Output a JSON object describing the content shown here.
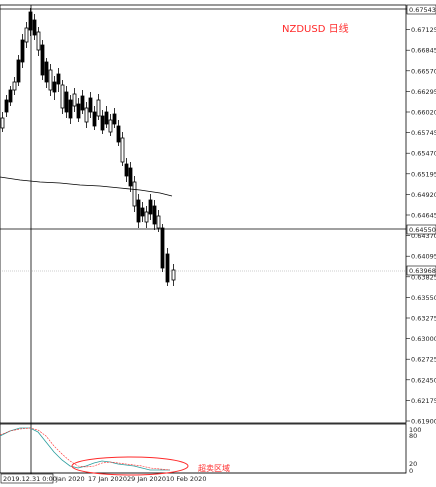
{
  "chart_data": {
    "type": "candlestick",
    "title": "NZDUSD 日线",
    "y_ticks": [
      "0.67543",
      "0.67125",
      "0.66845",
      "0.66570",
      "0.66295",
      "0.66020",
      "0.65745",
      "0.65470",
      "0.65195",
      "0.64920",
      "0.64645",
      "0.64370",
      "0.64095",
      "0.63825",
      "0.63550",
      "0.63275",
      "0.63000",
      "0.62725",
      "0.62450",
      "0.62175",
      "0.61900"
    ],
    "price_top_tag": "0.67543",
    "price_mid_tag": "0.64550",
    "price_current_tag": "0.63968",
    "x_labels": [
      "2019.12.31 0:00",
      "Jan 2020",
      "17 Jan 2020",
      "29 Jan 2020",
      "10 Feb 2020"
    ],
    "indicator_levels": [
      "100",
      "80",
      "20",
      "0"
    ],
    "annotation": "超卖区域",
    "colors": {
      "candles": "#000000",
      "moving_average": "#000000",
      "annotation": "#ff2a2a",
      "stoch_main": "#2a9d9d",
      "stoch_signal": "#ff2a2a"
    }
  }
}
